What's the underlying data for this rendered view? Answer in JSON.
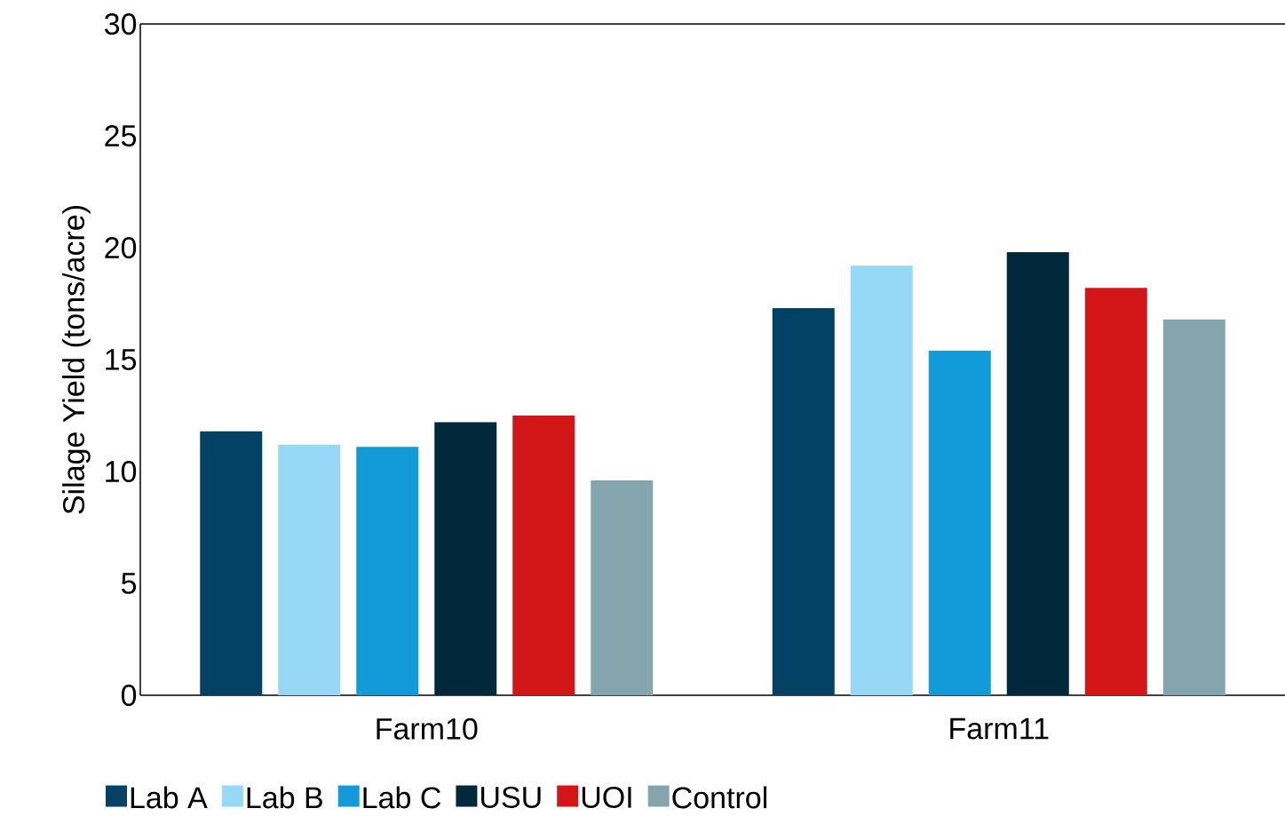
{
  "chart_data": {
    "type": "bar",
    "ylabel": "Silage Yield (tons/acre)",
    "categories": [
      "Farm10",
      "Farm11"
    ],
    "series": [
      {
        "name": "Lab A",
        "color": "#034264",
        "values": [
          11.8,
          17.3
        ]
      },
      {
        "name": "Lab B",
        "color": "#96d8f5",
        "values": [
          11.2,
          19.2
        ]
      },
      {
        "name": "Lab C",
        "color": "#139bd9",
        "values": [
          11.1,
          15.4
        ]
      },
      {
        "name": "USU",
        "color": "#02283c",
        "values": [
          12.2,
          19.8
        ]
      },
      {
        "name": "UOI",
        "color": "#d21618",
        "values": [
          12.5,
          18.2
        ]
      },
      {
        "name": "Control",
        "color": "#84a5ad",
        "values": [
          9.6,
          16.8
        ]
      }
    ],
    "ylim": [
      0,
      30
    ],
    "yticks": [
      0,
      5,
      10,
      15,
      20,
      25,
      30
    ],
    "grid": false,
    "legend": "bottom"
  }
}
